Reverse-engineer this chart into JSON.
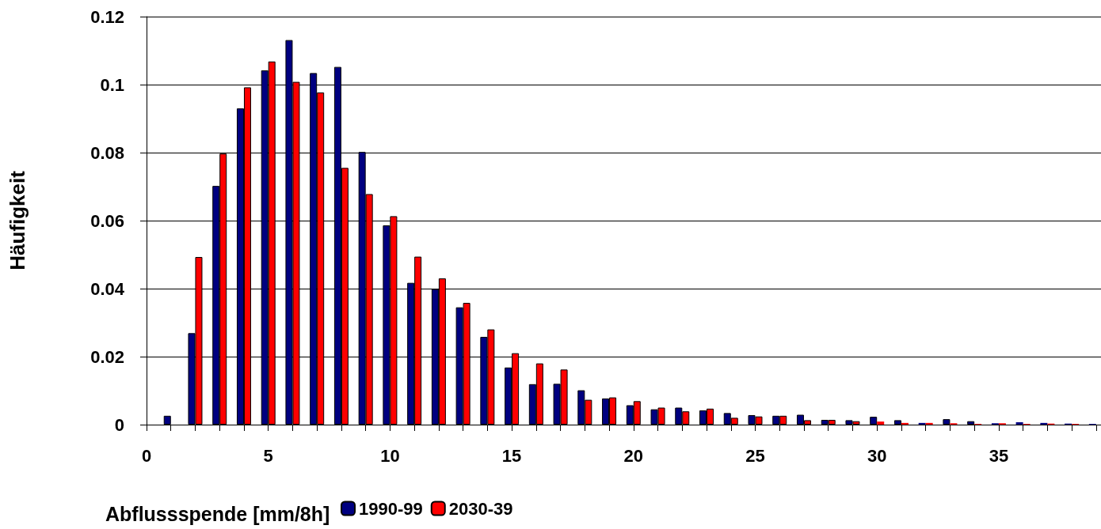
{
  "chart_data": {
    "type": "bar",
    "xlabel": "Abflussspende [mm/8h]",
    "ylabel": "Häufigkeit",
    "x": [
      1,
      2,
      3,
      4,
      5,
      6,
      7,
      8,
      9,
      10,
      11,
      12,
      13,
      14,
      15,
      16,
      17,
      18,
      19,
      20,
      21,
      22,
      23,
      24,
      25,
      26,
      27,
      28,
      29,
      30,
      31,
      32,
      33,
      34,
      35,
      36,
      37,
      38,
      39
    ],
    "series": [
      {
        "name": "1990-99",
        "color": "#000080",
        "values": [
          0.0026,
          0.0269,
          0.0702,
          0.093,
          0.1042,
          0.1131,
          0.1034,
          0.1052,
          0.0802,
          0.0586,
          0.0417,
          0.0399,
          0.0345,
          0.0258,
          0.0168,
          0.0119,
          0.012,
          0.0101,
          0.0077,
          0.0057,
          0.0045,
          0.005,
          0.0042,
          0.0034,
          0.0028,
          0.0026,
          0.0029,
          0.0014,
          0.0013,
          0.0023,
          0.0013,
          0.0005,
          0.0016,
          0.001,
          0.0004,
          0.0007,
          0.0005,
          0.0003,
          0.0002
        ]
      },
      {
        "name": "2030-39",
        "color": "#ff0000",
        "values": [
          null,
          0.0493,
          0.0797,
          0.0992,
          0.1068,
          0.1008,
          0.0977,
          0.0755,
          0.0678,
          0.0613,
          0.0494,
          0.043,
          0.0358,
          0.028,
          0.021,
          0.018,
          0.0162,
          0.0073,
          0.008,
          0.0069,
          0.005,
          0.0039,
          0.0047,
          0.002,
          0.0024,
          0.0026,
          0.0013,
          0.0014,
          0.001,
          0.0009,
          0.0005,
          0.0005,
          0.0004,
          0.0002,
          0.0004,
          0.0002,
          0.0003,
          0.0002,
          null
        ]
      }
    ],
    "xlim": [
      0,
      39.2
    ],
    "xticks": [
      0,
      {
        "value": 1,
        "label": null
      },
      {
        "value": 2,
        "label": null
      },
      {
        "value": 3,
        "label": null
      },
      {
        "value": 4,
        "label": null
      },
      5,
      {
        "value": 6,
        "label": null
      },
      {
        "value": 7,
        "label": null
      },
      {
        "value": 8,
        "label": null
      },
      {
        "value": 9,
        "label": null
      },
      10,
      {
        "value": 11,
        "label": null
      },
      {
        "value": 12,
        "label": null
      },
      {
        "value": 13,
        "label": null
      },
      {
        "value": 14,
        "label": null
      },
      15,
      {
        "value": 16,
        "label": null
      },
      {
        "value": 17,
        "label": null
      },
      {
        "value": 18,
        "label": null
      },
      {
        "value": 19,
        "label": null
      },
      20,
      {
        "value": 21,
        "label": null
      },
      {
        "value": 22,
        "label": null
      },
      {
        "value": 23,
        "label": null
      },
      {
        "value": 24,
        "label": null
      },
      25,
      {
        "value": 26,
        "label": null
      },
      {
        "value": 27,
        "label": null
      },
      {
        "value": 28,
        "label": null
      },
      {
        "value": 29,
        "label": null
      },
      30,
      {
        "value": 31,
        "label": null
      },
      {
        "value": 32,
        "label": null
      },
      {
        "value": 33,
        "label": null
      },
      {
        "value": 34,
        "label": null
      },
      35,
      {
        "value": 36,
        "label": null
      },
      {
        "value": 37,
        "label": null
      },
      {
        "value": 38,
        "label": null
      },
      {
        "value": 39,
        "label": null
      }
    ],
    "ylim": [
      0,
      0.12
    ],
    "yticks": [
      0,
      0.02,
      0.04,
      0.06,
      0.08,
      0.1,
      0.12
    ],
    "grid": "y",
    "legend": "bottom"
  }
}
